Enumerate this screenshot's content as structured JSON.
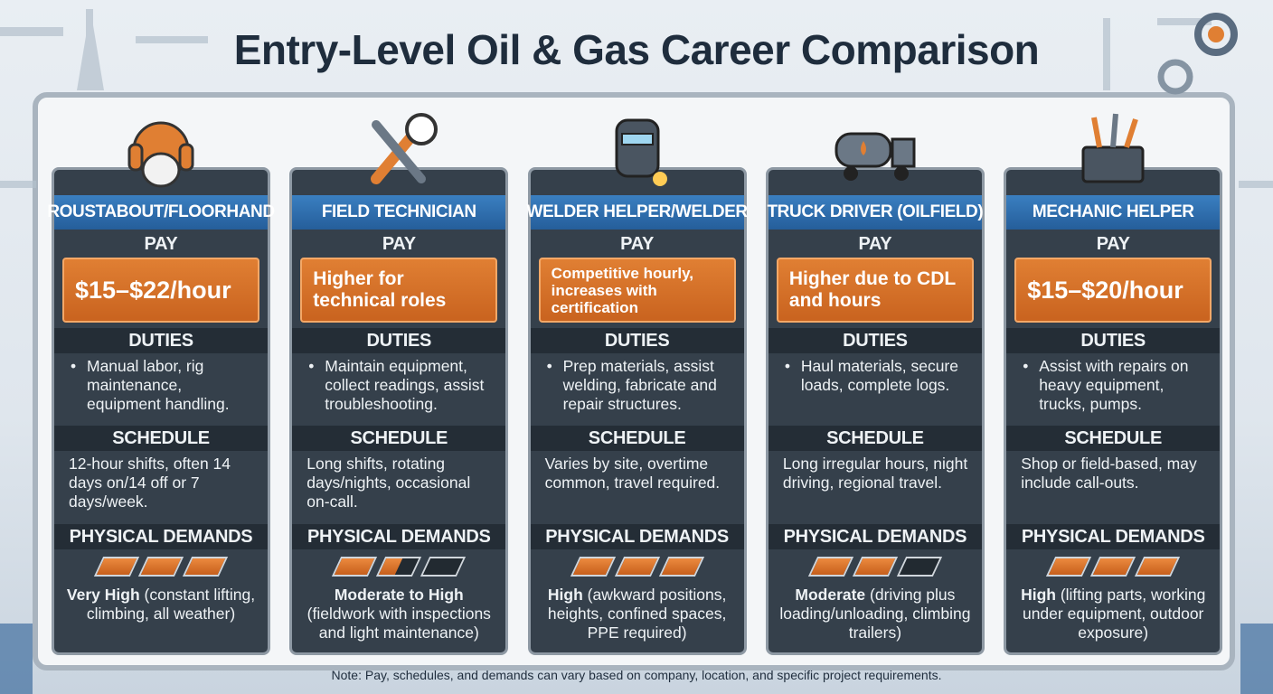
{
  "title": "Entry-Level Oil & Gas Career Comparison",
  "labels": {
    "pay": "PAY",
    "duties": "DUTIES",
    "schedule": "SCHEDULE",
    "demands": "PHYSICAL DEMANDS"
  },
  "demand_max": 3,
  "cards": [
    {
      "title": "ROUSTABOUT/FLOORHAND",
      "pay": "$15–$22/hour",
      "duties": "Manual labor, rig maintenance, equipment handling.",
      "schedule": "12-hour shifts, often 14 days on/14 off or 7 days/week.",
      "demand_rating": 3,
      "demand_level": "Very High",
      "demand_detail": "(constant lifting, climbing, all weather)"
    },
    {
      "title": "FIELD TECHNICIAN",
      "pay": "Higher for technical roles",
      "duties": "Maintain equipment, collect readings, assist troubleshooting.",
      "schedule": "Long shifts, rotating days/nights, occasional on-call.",
      "demand_rating": 1.5,
      "demand_level": "Moderate to High",
      "demand_detail": "(fieldwork with inspections and light maintenance)"
    },
    {
      "title": "WELDER HELPER/WELDER",
      "pay": "Competitive hourly, increases with certification",
      "duties": "Prep materials, assist welding, fabricate and repair structures.",
      "schedule": "Varies by site, overtime common, travel required.",
      "demand_rating": 3,
      "demand_level": "High",
      "demand_detail": "(awkward positions, heights, confined spaces, PPE required)"
    },
    {
      "title": "TRUCK DRIVER (OILFIELD)",
      "pay": "Higher due to CDL and hours",
      "duties": "Haul materials, secure loads, complete logs.",
      "schedule": "Long irregular hours, night driving, regional travel.",
      "demand_rating": 2,
      "demand_level": "Moderate",
      "demand_detail": "(driving plus loading/unloading, climbing trailers)"
    },
    {
      "title": "MECHANIC HELPER",
      "pay": "$15–$20/hour",
      "duties": "Assist with repairs on heavy equipment, trucks, pumps.",
      "schedule": "Shop or field-based, may include call-outs.",
      "demand_rating": 3,
      "demand_level": "High",
      "demand_detail": "(lifting parts, working under equipment, outdoor exposure)"
    }
  ],
  "note": "Note: Pay, schedules, and demands can vary based on company, location, and specific project requirements."
}
